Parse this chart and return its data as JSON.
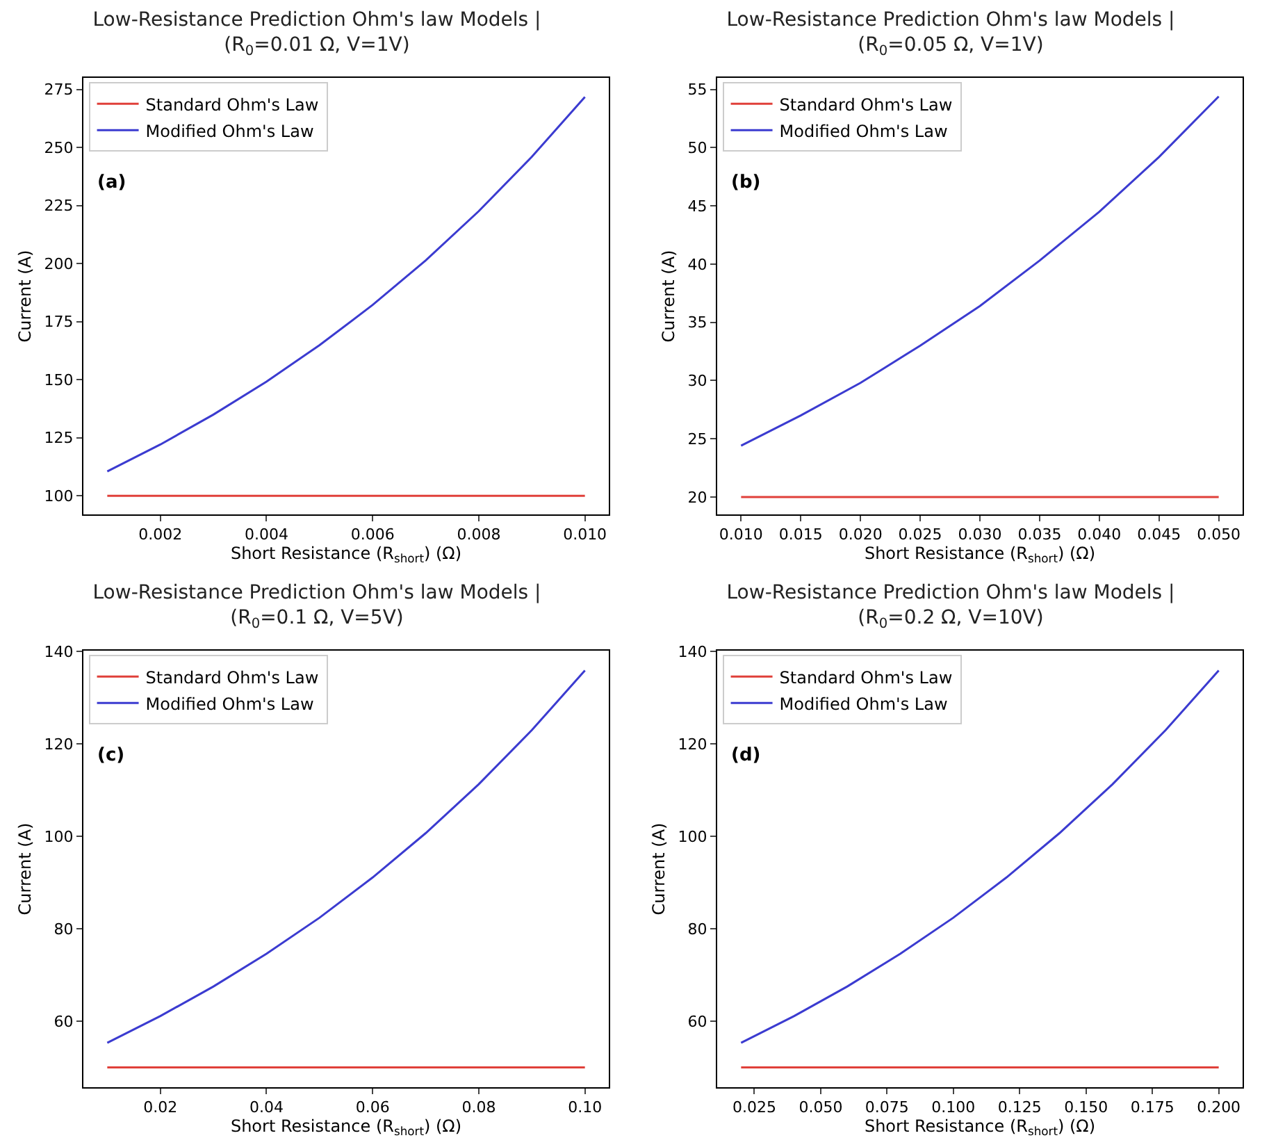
{
  "chart_data": [
    {
      "type": "line",
      "title": "Low-Resistance Prediction Ohm's law Models |\n(R$_{0}$=0.01 Ω, V=1V)",
      "xlabel": "Short Resistance (R$_{short}$) (Ω)",
      "ylabel": "Current (A)",
      "annotations": [
        "(a)"
      ],
      "legend": "top left",
      "grid": false,
      "xlim": [
        0.00055,
        0.01045
      ],
      "xticks": [
        0.002,
        0.004,
        0.006,
        0.008,
        {
          "value": 0.01,
          "label": "0.010"
        }
      ],
      "ylim": [
        92,
        280
      ],
      "yticks": [
        100,
        125,
        150,
        175,
        200,
        225,
        250,
        275
      ],
      "series": [
        {
          "name": "Standard Ohm's Law",
          "color": "#e0403a",
          "x": [
            0.001,
            0.01
          ],
          "values": [
            100,
            100
          ]
        },
        {
          "name": "Modified Ohm's Law",
          "color": "#3b3bd0",
          "x": [
            0.001,
            0.002,
            0.003,
            0.004,
            0.005,
            0.006,
            0.007,
            0.008,
            0.009,
            0.01
          ],
          "values": [
            110.5,
            122.1,
            135.0,
            149.2,
            164.9,
            182.2,
            201.4,
            222.6,
            246.0,
            271.8
          ]
        }
      ]
    },
    {
      "type": "line",
      "title": "Low-Resistance Prediction Ohm's law Models |\n(R$_{0}$=0.05 Ω, V=1V)",
      "xlabel": "Short Resistance (R$_{short}$) (Ω)",
      "ylabel": "Current (A)",
      "annotations": [
        "(b)"
      ],
      "legend": "top left",
      "grid": false,
      "xlim": [
        0.008,
        0.052
      ],
      "xticks": [
        {
          "value": 0.01,
          "label": "0.010"
        },
        0.015,
        {
          "value": 0.02,
          "label": "0.020"
        },
        0.025,
        {
          "value": 0.03,
          "label": "0.030"
        },
        0.035,
        {
          "value": 0.04,
          "label": "0.040"
        },
        0.045,
        {
          "value": 0.05,
          "label": "0.050"
        }
      ],
      "ylim": [
        18.5,
        56
      ],
      "yticks": [
        20,
        25,
        30,
        35,
        40,
        45,
        50,
        55
      ],
      "series": [
        {
          "name": "Standard Ohm's Law",
          "color": "#e0403a",
          "x": [
            0.01,
            0.05
          ],
          "values": [
            20,
            20
          ]
        },
        {
          "name": "Modified Ohm's Law",
          "color": "#3b3bd0",
          "x": [
            0.01,
            0.015,
            0.02,
            0.025,
            0.03,
            0.035,
            0.04,
            0.045,
            0.05
          ],
          "values": [
            24.4,
            27.0,
            29.8,
            33.0,
            36.4,
            40.3,
            44.5,
            49.2,
            54.4
          ]
        }
      ]
    },
    {
      "type": "line",
      "title": "Low-Resistance Prediction Ohm's law Models |\n(R$_{0}$=0.1 Ω, V=5V)",
      "xlabel": "Short Resistance (R$_{short}$) (Ω)",
      "ylabel": "Current (A)",
      "annotations": [
        "(c)"
      ],
      "legend": "top left",
      "grid": false,
      "xlim": [
        0.0055,
        0.1045
      ],
      "xticks": [
        0.02,
        0.04,
        0.06,
        0.08,
        {
          "value": 0.1,
          "label": "0.10"
        }
      ],
      "ylim": [
        45.7,
        140.2
      ],
      "yticks": [
        60,
        80,
        100,
        120,
        140
      ],
      "series": [
        {
          "name": "Standard Ohm's Law",
          "color": "#e0403a",
          "x": [
            0.01,
            0.1
          ],
          "values": [
            50,
            50
          ]
        },
        {
          "name": "Modified Ohm's Law",
          "color": "#3b3bd0",
          "x": [
            0.01,
            0.02,
            0.03,
            0.04,
            0.05,
            0.06,
            0.07,
            0.08,
            0.09,
            0.1
          ],
          "values": [
            55.3,
            61.1,
            67.5,
            74.6,
            82.4,
            91.1,
            100.7,
            111.3,
            123.0,
            135.9
          ]
        }
      ]
    },
    {
      "type": "line",
      "title": "Low-Resistance Prediction Ohm's law Models |\n(R$_{0}$=0.2 Ω, V=10V)",
      "xlabel": "Short Resistance (R$_{short}$) (Ω)",
      "ylabel": "Current (A)",
      "annotations": [
        "(d)"
      ],
      "legend": "top left",
      "grid": false,
      "xlim": [
        0.011,
        0.209
      ],
      "xticks": [
        0.025,
        {
          "value": 0.05,
          "label": "0.050"
        },
        0.075,
        {
          "value": 0.1,
          "label": "0.100"
        },
        0.125,
        {
          "value": 0.15,
          "label": "0.150"
        },
        0.175,
        {
          "value": 0.2,
          "label": "0.200"
        }
      ],
      "ylim": [
        45.7,
        140.2
      ],
      "yticks": [
        60,
        80,
        100,
        120,
        140
      ],
      "series": [
        {
          "name": "Standard Ohm's Law",
          "color": "#e0403a",
          "x": [
            0.02,
            0.2
          ],
          "values": [
            50,
            50
          ]
        },
        {
          "name": "Modified Ohm's Law",
          "color": "#3b3bd0",
          "x": [
            0.02,
            0.04,
            0.06,
            0.08,
            0.1,
            0.12,
            0.14,
            0.16,
            0.18,
            0.2
          ],
          "values": [
            55.3,
            61.1,
            67.5,
            74.6,
            82.4,
            91.1,
            100.7,
            111.3,
            123.0,
            135.9
          ]
        }
      ]
    }
  ]
}
